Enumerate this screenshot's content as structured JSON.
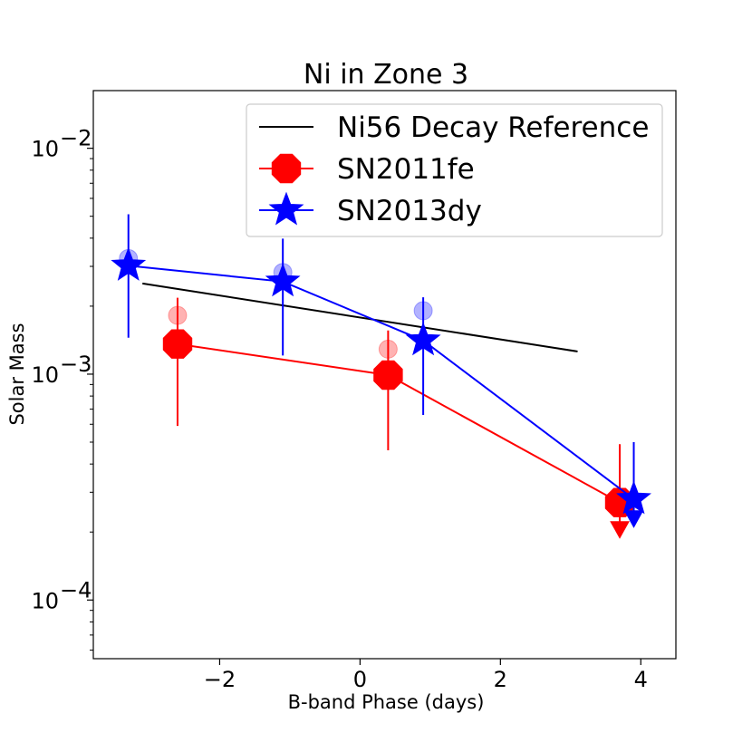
{
  "chart_data": {
    "type": "scatter",
    "title": "Ni in Zone 3",
    "xlabel": "B-band Phase (days)",
    "ylabel": "Solar Mass",
    "xscale": "linear",
    "yscale": "log",
    "xlim": [
      -3.8,
      4.5
    ],
    "ylim": [
      5.5e-05,
      0.018
    ],
    "xticks": [
      {
        "value": -2,
        "label": "−2"
      },
      {
        "value": 0,
        "label": "0"
      },
      {
        "value": 2,
        "label": "2"
      },
      {
        "value": 4,
        "label": "4"
      }
    ],
    "yticks": [
      {
        "value": 0.0001,
        "base": "10",
        "exp": "−4"
      },
      {
        "value": 0.001,
        "base": "10",
        "exp": "−3"
      },
      {
        "value": 0.01,
        "base": "10",
        "exp": "−2"
      }
    ],
    "legend": {
      "position": "top-right",
      "entries": [
        {
          "label": "Ni56 Decay Reference",
          "series": "reference"
        },
        {
          "label": "SN2011fe",
          "series": "sn2011fe"
        },
        {
          "label": "SN2013dy",
          "series": "sn2013dy"
        }
      ]
    },
    "series": [
      {
        "id": "reference",
        "name": "Ni56 Decay Reference",
        "kind": "line",
        "color": "#000000",
        "x": [
          -3.1,
          3.1
        ],
        "y": [
          0.00252,
          0.00126
        ]
      },
      {
        "id": "sn2011fe",
        "name": "SN2011fe",
        "kind": "line+marker",
        "marker": "octagon",
        "color": "#ff0000",
        "points": [
          {
            "x": -2.6,
            "y": 0.00136,
            "yerr_low": 0.00059,
            "yerr_high": 0.00218,
            "alt": 0.00182,
            "upper_limit": false
          },
          {
            "x": 0.4,
            "y": 0.00099,
            "yerr_low": 0.00046,
            "yerr_high": 0.00156,
            "alt": 0.00129,
            "upper_limit": false
          },
          {
            "x": 3.7,
            "y": 0.00027,
            "yerr_low": null,
            "yerr_high": 0.00049,
            "alt": null,
            "upper_limit": true
          }
        ]
      },
      {
        "id": "sn2013dy",
        "name": "SN2013dy",
        "kind": "line+marker",
        "marker": "star",
        "color": "#0000ff",
        "points": [
          {
            "x": -3.3,
            "y": 0.00302,
            "yerr_low": 0.00145,
            "yerr_high": 0.0051,
            "alt": 0.00325,
            "upper_limit": false
          },
          {
            "x": -1.1,
            "y": 0.00257,
            "yerr_low": 0.00121,
            "yerr_high": 0.00398,
            "alt": 0.00282,
            "upper_limit": false
          },
          {
            "x": 0.9,
            "y": 0.00141,
            "yerr_low": 0.00066,
            "yerr_high": 0.00219,
            "alt": 0.00191,
            "upper_limit": false
          },
          {
            "x": 3.9,
            "y": 0.00028,
            "yerr_low": null,
            "yerr_high": 0.0005,
            "alt": null,
            "upper_limit": true
          }
        ]
      }
    ]
  }
}
